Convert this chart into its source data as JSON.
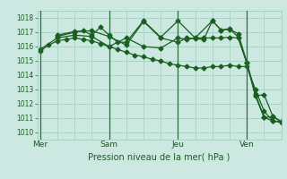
{
  "background_color": "#cce8e0",
  "grid_color": "#99ccbb",
  "line_color": "#1a5e20",
  "xlabel": "Pression niveau de la mer( hPa )",
  "ylim": [
    1009.5,
    1018.5
  ],
  "yticks": [
    1010,
    1011,
    1012,
    1013,
    1014,
    1015,
    1016,
    1017,
    1018
  ],
  "day_labels": [
    "Mer",
    "Sam",
    "Jeu",
    "Ven"
  ],
  "day_positions": [
    0,
    24,
    48,
    72
  ],
  "xlim": [
    -1,
    84
  ],
  "series1_x": [
    0,
    3,
    6,
    9,
    12,
    15,
    18,
    21,
    24,
    27,
    30,
    33,
    36,
    39,
    42,
    45,
    48,
    51,
    54,
    57,
    60,
    63,
    66,
    69,
    72,
    75,
    78,
    81,
    84
  ],
  "series1_y": [
    1015.7,
    1016.1,
    1016.4,
    1016.5,
    1016.6,
    1016.5,
    1016.4,
    1016.2,
    1016.0,
    1015.8,
    1015.6,
    1015.4,
    1015.3,
    1015.1,
    1015.0,
    1014.8,
    1014.7,
    1014.6,
    1014.5,
    1014.5,
    1014.6,
    1014.6,
    1014.7,
    1014.6,
    1014.6,
    1013.0,
    1011.5,
    1010.8,
    1010.7
  ],
  "series2_x": [
    0,
    6,
    12,
    18,
    24,
    30,
    36,
    42,
    48,
    51,
    54,
    57,
    60,
    63,
    66,
    69,
    72,
    75,
    78,
    81,
    84
  ],
  "series2_y": [
    1015.8,
    1016.6,
    1016.8,
    1016.7,
    1016.0,
    1016.6,
    1016.0,
    1015.9,
    1016.6,
    1016.5,
    1016.6,
    1016.6,
    1016.6,
    1016.6,
    1016.65,
    1016.6,
    1014.85,
    1012.55,
    1011.05,
    1011.1,
    1010.75
  ],
  "series3_x": [
    6,
    12,
    15,
    18,
    21,
    24,
    27,
    30,
    36,
    42,
    48,
    54,
    60,
    63,
    66,
    69,
    72,
    75,
    78,
    81,
    84
  ],
  "series3_y": [
    1016.7,
    1017.0,
    1017.1,
    1016.8,
    1017.35,
    1016.8,
    1016.3,
    1016.3,
    1017.8,
    1016.65,
    1017.8,
    1016.6,
    1017.8,
    1017.15,
    1017.2,
    1016.9,
    1014.9,
    1012.7,
    1011.05,
    1010.8,
    1010.75
  ],
  "series4_x": [
    6,
    12,
    18,
    24,
    30,
    36,
    42,
    48,
    51,
    54,
    57,
    60,
    63,
    66,
    69,
    72,
    75,
    78,
    81,
    84
  ],
  "series4_y": [
    1016.8,
    1017.05,
    1017.1,
    1016.7,
    1016.1,
    1017.75,
    1016.6,
    1016.3,
    1016.6,
    1016.55,
    1016.5,
    1017.8,
    1017.15,
    1017.25,
    1016.65,
    1014.85,
    1012.55,
    1012.65,
    1011.15,
    1010.75
  ]
}
